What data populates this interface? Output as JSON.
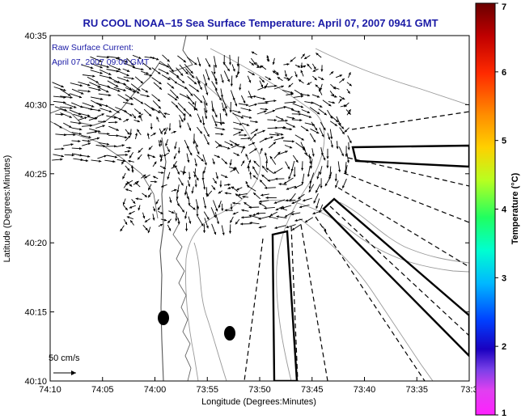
{
  "title": "RU COOL  NOAA–15  Sea Surface Temperature:  April 07, 2007 0941 GMT",
  "subtitle_line1": "Raw Surface Current:",
  "subtitle_line2": "April 07, 2007 09:00 GMT",
  "scale_label": "50 cm/s",
  "xlabel": "Longitude (Degrees:Minutes)",
  "ylabel": "Latitude (Degrees:Minutes)",
  "colorbar_label": "Temperature (°C)",
  "x_ticks": [
    "74:10",
    "74:05",
    "74:00",
    "73:55",
    "73:50",
    "73:45",
    "73:40",
    "73:35",
    "73:3"
  ],
  "y_ticks": [
    "40:35",
    "40:30",
    "40:25",
    "40:20",
    "40:15",
    "40:10"
  ],
  "colorbar_ticks": [
    "7",
    "6",
    "5",
    "4",
    "3",
    "2",
    "1"
  ],
  "colors": {
    "title": "#1a1aa6",
    "map_background": "#ffffff",
    "vectors": "#000000",
    "coastline": "#555555",
    "bathymetry": "#999999"
  },
  "icons": [
    "current-vector-icon",
    "scale-arrow-icon",
    "buoy-marker-icon"
  ]
}
